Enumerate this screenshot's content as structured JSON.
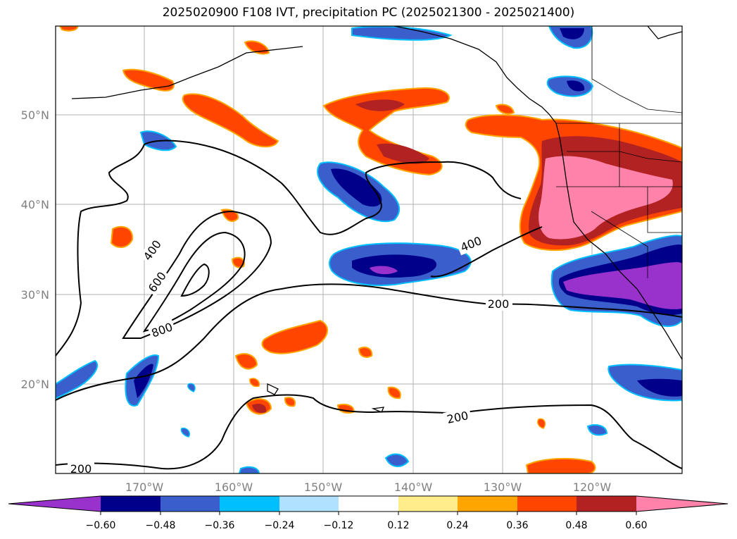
{
  "title": "2025020900 F108 IVT, precipitation PC (2025021300 - 2025021400)",
  "map": {
    "lat_labels": [
      "50°N",
      "40°N",
      "30°N",
      "20°N"
    ],
    "lon_labels": [
      "170°W",
      "160°W",
      "150°W",
      "140°W",
      "130°W",
      "120°W"
    ],
    "ivt_contour_labels": [
      "400",
      "600",
      "800",
      "200",
      "400",
      "200",
      "200"
    ]
  },
  "colorbar": {
    "colors": [
      "#9932cc",
      "#00008b",
      "#3a5fcd",
      "#00bfff",
      "#b0e2ff",
      "#ffffff",
      "#ffec8b",
      "#ffa500",
      "#ff4500",
      "#b22222",
      "#ff82ab",
      "#ff82ab"
    ],
    "tick_labels": [
      "−0.60",
      "−0.48",
      "−0.36",
      "−0.24",
      "−0.12",
      "0.12",
      "0.24",
      "0.36",
      "0.48",
      "0.60"
    ]
  }
}
